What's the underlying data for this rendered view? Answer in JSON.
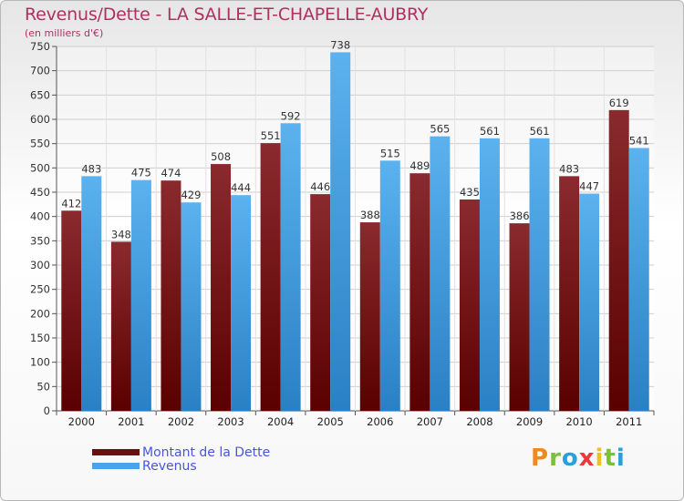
{
  "title": "Revenus/Dette - LA SALLE-ET-CHAPELLE-AUBRY",
  "subtitle": "(en milliers d'€)",
  "logo": "Proxiti",
  "colors": {
    "dette": "#7a0f12",
    "revenus": "#4aa3e8",
    "title": "#b03060",
    "legend_text": "#4a55d8"
  },
  "chart_data": {
    "type": "bar",
    "title": "Revenus/Dette - LA SALLE-ET-CHAPELLE-AUBRY",
    "ylabel": "(en milliers d'€)",
    "xlabel": "",
    "ylim": [
      0,
      750
    ],
    "yticks": [
      0,
      50,
      100,
      150,
      200,
      250,
      300,
      350,
      400,
      450,
      500,
      550,
      600,
      650,
      700,
      750
    ],
    "grid": true,
    "legend": "bottom-left",
    "categories": [
      "2000",
      "2001",
      "2002",
      "2003",
      "2004",
      "2005",
      "2006",
      "2007",
      "2008",
      "2009",
      "2010",
      "2011"
    ],
    "series": [
      {
        "name": "Montant de la Dette",
        "values": [
          412,
          348,
          474,
          508,
          551,
          446,
          388,
          489,
          435,
          386,
          483,
          619
        ]
      },
      {
        "name": "Revenus",
        "values": [
          483,
          475,
          429,
          444,
          592,
          738,
          515,
          565,
          561,
          561,
          447,
          541
        ]
      }
    ]
  }
}
